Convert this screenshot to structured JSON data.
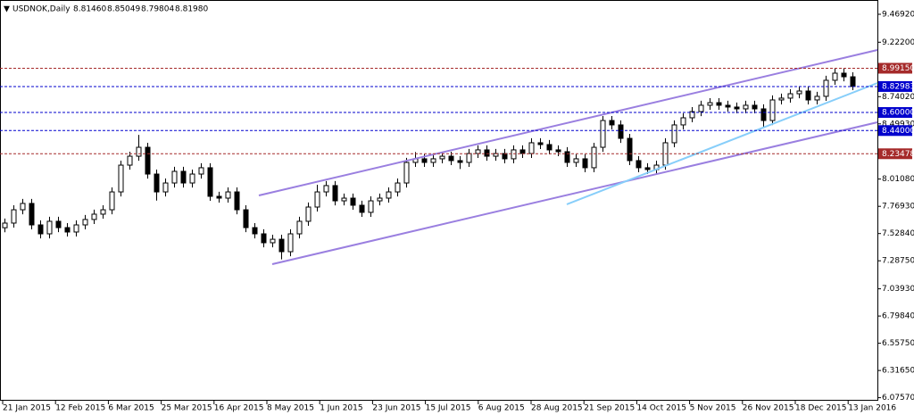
{
  "chart_data": {
    "type": "candlestick",
    "symbol": "USDNOK,Daily",
    "quote": [
      "8.81460",
      "8.85049",
      "8.79804",
      "8.81980"
    ],
    "ylim": [
      6.0757,
      9.4692
    ],
    "yticks": [
      {
        "value": 9.4692,
        "label": "9.46920"
      },
      {
        "value": 9.222,
        "label": "9.22200"
      },
      {
        "value": 8.7402,
        "label": "8.74020"
      },
      {
        "value": 8.4993,
        "label": "8.49930"
      },
      {
        "value": 8.0108,
        "label": "8.01080"
      },
      {
        "value": 7.7693,
        "label": "7.76930"
      },
      {
        "value": 7.5284,
        "label": "7.52840"
      },
      {
        "value": 7.2875,
        "label": "7.28750"
      },
      {
        "value": 7.0393,
        "label": "7.03930"
      },
      {
        "value": 6.7984,
        "label": "6.79840"
      },
      {
        "value": 6.5575,
        "label": "6.55750"
      },
      {
        "value": 6.3165,
        "label": "6.31650"
      },
      {
        "value": 6.0757,
        "label": "6.07570"
      }
    ],
    "levels": [
      {
        "value": 8.9915,
        "label": "8.99150",
        "color": "#a52a2a"
      },
      {
        "value": 8.82983,
        "label": "8.82983",
        "color": "#0000cd"
      },
      {
        "value": 8.6,
        "label": "8.60000",
        "color": "#0000cd"
      },
      {
        "value": 8.44,
        "label": "8.44000",
        "color": "#0000cd"
      },
      {
        "value": 8.23478,
        "label": "8.23478",
        "color": "#a52a2a"
      }
    ],
    "date_labels": [
      "21 Jan 2015",
      "12 Feb 2015",
      "6 Mar 2015",
      "25 Mar 2015",
      "16 Apr 2015",
      "8 May 2015",
      "1 Jun 2015",
      "23 Jun 2015",
      "15 Jul 2015",
      "6 Aug 2015",
      "28 Aug 2015",
      "21 Sep 2015",
      "14 Oct 2015",
      "5 Nov 2015",
      "26 Nov 2015",
      "18 Dec 2015",
      "13 Jan 2016"
    ],
    "ohlc": [
      [
        7.58,
        7.661,
        7.54,
        7.621
      ],
      [
        7.621,
        7.779,
        7.581,
        7.739
      ],
      [
        7.739,
        7.835,
        7.699,
        7.795
      ],
      [
        7.795,
        7.835,
        7.565,
        7.605
      ],
      [
        7.605,
        7.645,
        7.486,
        7.526
      ],
      [
        7.526,
        7.677,
        7.486,
        7.637
      ],
      [
        7.637,
        7.677,
        7.541,
        7.581
      ],
      [
        7.581,
        7.621,
        7.502,
        7.542
      ],
      [
        7.542,
        7.645,
        7.502,
        7.605
      ],
      [
        7.605,
        7.693,
        7.565,
        7.653
      ],
      [
        7.653,
        7.74,
        7.613,
        7.7
      ],
      [
        7.7,
        7.779,
        7.66,
        7.739
      ],
      [
        7.739,
        7.937,
        7.699,
        7.897
      ],
      [
        7.897,
        8.174,
        7.857,
        8.134
      ],
      [
        8.134,
        8.253,
        8.094,
        8.213
      ],
      [
        8.213,
        8.402,
        8.173,
        8.292
      ],
      [
        8.292,
        8.332,
        8.015,
        8.055
      ],
      [
        8.055,
        8.095,
        7.82,
        7.897
      ],
      [
        7.897,
        8.016,
        7.857,
        7.976
      ],
      [
        7.976,
        8.119,
        7.936,
        8.079
      ],
      [
        8.079,
        8.119,
        7.936,
        7.976
      ],
      [
        7.976,
        8.095,
        7.936,
        8.055
      ],
      [
        8.055,
        8.151,
        8.015,
        8.111
      ],
      [
        8.111,
        8.151,
        7.818,
        7.858
      ],
      [
        7.858,
        7.898,
        7.802,
        7.842
      ],
      [
        7.842,
        7.937,
        7.802,
        7.897
      ],
      [
        7.897,
        7.937,
        7.699,
        7.739
      ],
      [
        7.739,
        7.779,
        7.541,
        7.581
      ],
      [
        7.581,
        7.621,
        7.486,
        7.526
      ],
      [
        7.526,
        7.566,
        7.407,
        7.447
      ],
      [
        7.447,
        7.518,
        7.407,
        7.478
      ],
      [
        7.478,
        7.518,
        7.3,
        7.368
      ],
      [
        7.368,
        7.566,
        7.328,
        7.526
      ],
      [
        7.526,
        7.677,
        7.486,
        7.637
      ],
      [
        7.637,
        7.803,
        7.597,
        7.763
      ],
      [
        7.763,
        7.96,
        7.723,
        7.897
      ],
      [
        7.897,
        7.993,
        7.857,
        7.953
      ],
      [
        7.953,
        7.993,
        7.778,
        7.818
      ],
      [
        7.818,
        7.882,
        7.778,
        7.842
      ],
      [
        7.842,
        7.882,
        7.739,
        7.779
      ],
      [
        7.779,
        7.819,
        7.676,
        7.716
      ],
      [
        7.716,
        7.858,
        7.676,
        7.818
      ],
      [
        7.818,
        7.882,
        7.778,
        7.842
      ],
      [
        7.842,
        7.937,
        7.802,
        7.897
      ],
      [
        7.897,
        8.016,
        7.857,
        7.976
      ],
      [
        7.976,
        8.198,
        7.936,
        8.158
      ],
      [
        8.158,
        8.25,
        8.118,
        8.19
      ],
      [
        8.19,
        8.23,
        8.118,
        8.158
      ],
      [
        8.158,
        8.23,
        8.118,
        8.19
      ],
      [
        8.19,
        8.253,
        8.15,
        8.213
      ],
      [
        8.213,
        8.253,
        8.134,
        8.174
      ],
      [
        8.174,
        8.214,
        8.1,
        8.158
      ],
      [
        8.158,
        8.277,
        8.118,
        8.237
      ],
      [
        8.237,
        8.309,
        8.197,
        8.269
      ],
      [
        8.269,
        8.309,
        8.173,
        8.213
      ],
      [
        8.213,
        8.277,
        8.173,
        8.237
      ],
      [
        8.237,
        8.277,
        8.15,
        8.19
      ],
      [
        8.19,
        8.309,
        8.15,
        8.269
      ],
      [
        8.269,
        8.309,
        8.197,
        8.237
      ],
      [
        8.237,
        8.372,
        8.197,
        8.332
      ],
      [
        8.332,
        8.372,
        8.276,
        8.316
      ],
      [
        8.316,
        8.356,
        8.229,
        8.269
      ],
      [
        8.269,
        8.309,
        8.213,
        8.253
      ],
      [
        8.253,
        8.293,
        8.118,
        8.158
      ],
      [
        8.158,
        8.23,
        8.118,
        8.19
      ],
      [
        8.19,
        8.23,
        8.071,
        8.111
      ],
      [
        8.111,
        8.332,
        8.071,
        8.292
      ],
      [
        8.292,
        8.569,
        8.252,
        8.529
      ],
      [
        8.529,
        8.569,
        8.45,
        8.49
      ],
      [
        8.49,
        8.53,
        8.331,
        8.371
      ],
      [
        8.371,
        8.411,
        8.134,
        8.174
      ],
      [
        8.174,
        8.214,
        8.071,
        8.111
      ],
      [
        8.111,
        8.151,
        8.055,
        8.095
      ],
      [
        8.095,
        8.174,
        8.055,
        8.134
      ],
      [
        8.134,
        8.372,
        8.094,
        8.332
      ],
      [
        8.332,
        8.53,
        8.292,
        8.49
      ],
      [
        8.49,
        8.593,
        8.45,
        8.553
      ],
      [
        8.553,
        8.648,
        8.513,
        8.608
      ],
      [
        8.608,
        8.704,
        8.568,
        8.664
      ],
      [
        8.664,
        8.727,
        8.624,
        8.687
      ],
      [
        8.687,
        8.727,
        8.624,
        8.664
      ],
      [
        8.664,
        8.704,
        8.608,
        8.648
      ],
      [
        8.648,
        8.688,
        8.592,
        8.632
      ],
      [
        8.632,
        8.704,
        8.592,
        8.664
      ],
      [
        8.664,
        8.704,
        8.592,
        8.632
      ],
      [
        8.632,
        8.672,
        8.47,
        8.529
      ],
      [
        8.529,
        8.751,
        8.489,
        8.711
      ],
      [
        8.711,
        8.767,
        8.671,
        8.727
      ],
      [
        8.727,
        8.806,
        8.687,
        8.766
      ],
      [
        8.766,
        8.83,
        8.726,
        8.79
      ],
      [
        8.79,
        8.83,
        8.671,
        8.711
      ],
      [
        8.711,
        8.783,
        8.671,
        8.743
      ],
      [
        8.743,
        8.925,
        8.703,
        8.885
      ],
      [
        8.885,
        8.988,
        8.845,
        8.948
      ],
      [
        8.948,
        8.988,
        8.876,
        8.916
      ],
      [
        8.916,
        8.956,
        8.798,
        8.83
      ]
    ]
  }
}
